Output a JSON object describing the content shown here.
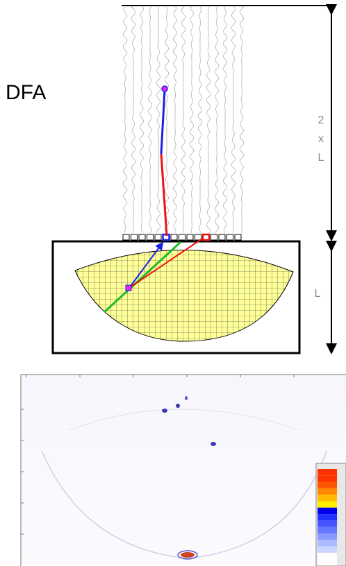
{
  "title": "DFA",
  "labels": {
    "two": "2",
    "times": "x",
    "length": "L",
    "box_length": "L"
  }
}
